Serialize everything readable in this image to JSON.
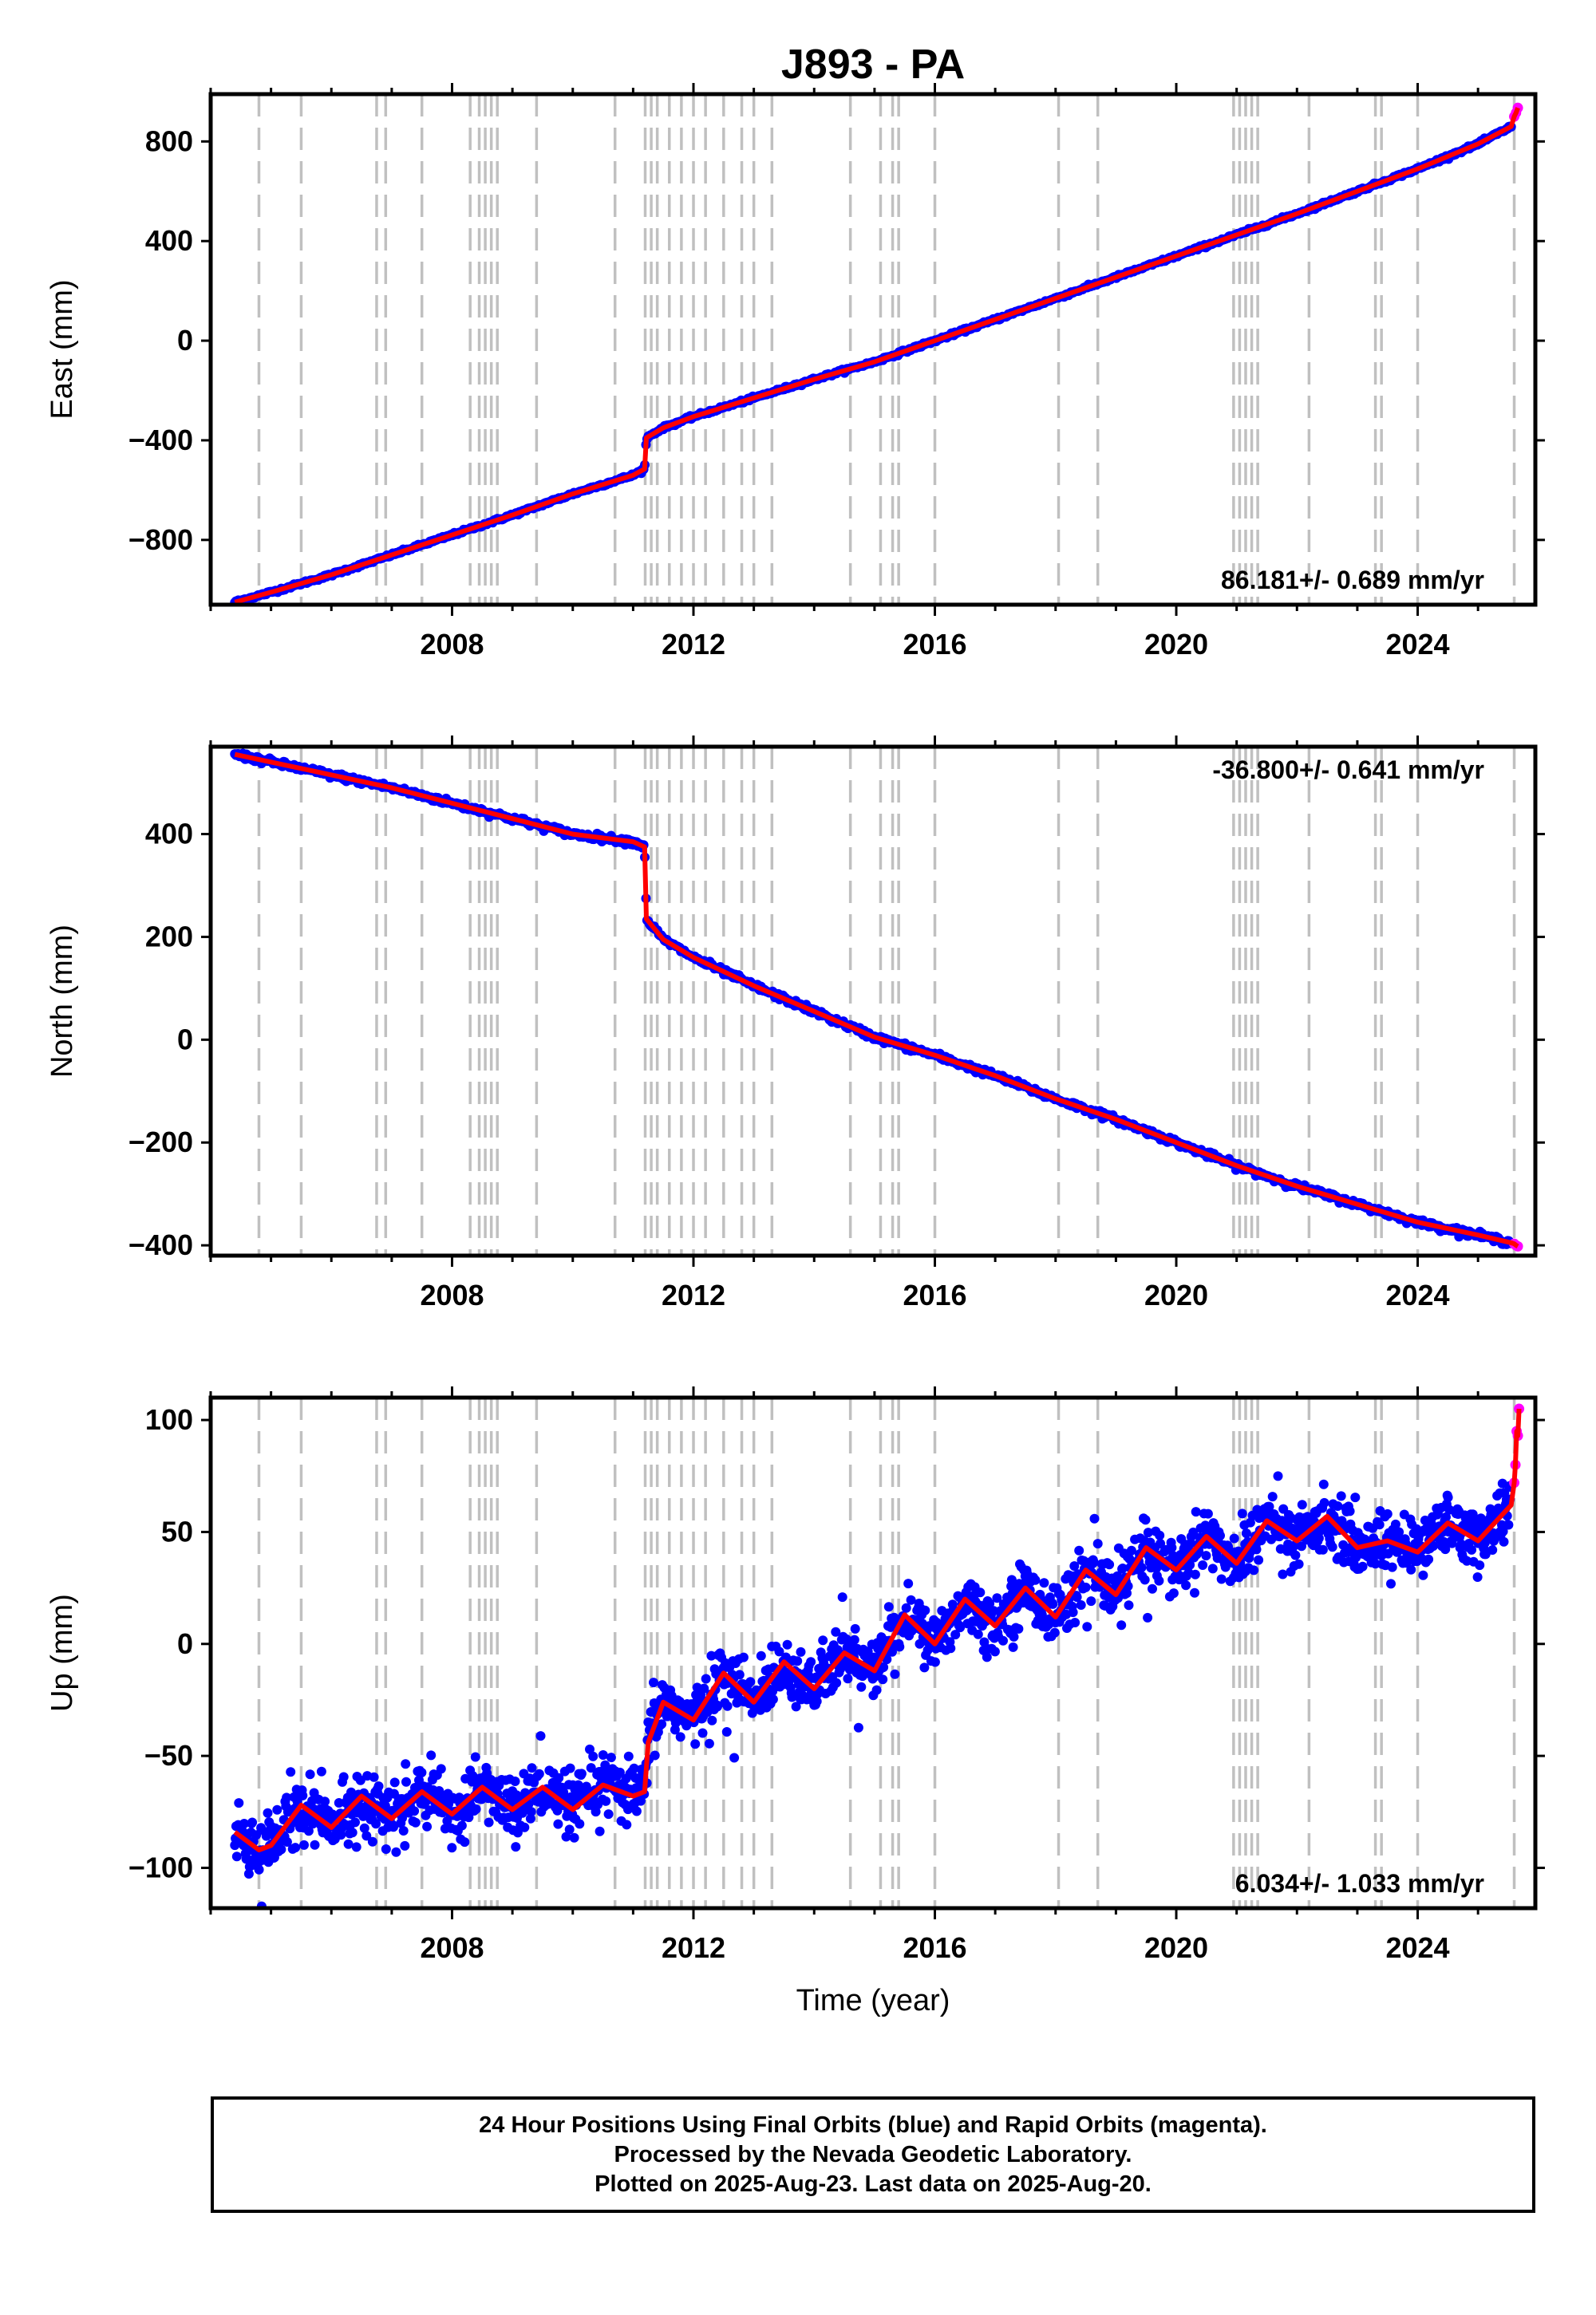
{
  "title": "J893 - PA",
  "xlabel": "Time (year)",
  "footer": {
    "line1": "24 Hour Positions Using Final Orbits (blue) and Rapid Orbits (magenta).",
    "line2": "Processed by the Nevada Geodetic Laboratory.",
    "line3": "Plotted on 2025-Aug-23. Last data on 2025-Aug-20."
  },
  "colors": {
    "final_orbits": "#0000ff",
    "rapid_orbits": "#ff00ff",
    "model": "#ff0000",
    "event_lines": "#c0c0c0"
  },
  "chart_data": [
    {
      "type": "scatter",
      "component": "east",
      "ylabel": "East (mm)",
      "xlim": [
        2004.0,
        2025.95
      ],
      "ylim": [
        -1060,
        990
      ],
      "yticks": [
        -800,
        -400,
        0,
        400,
        800
      ],
      "xticks": [
        2008,
        2012,
        2016,
        2020,
        2024
      ],
      "rate_label": "86.181+/- 0.689 mm/yr",
      "rate_position": "bottom-right",
      "series": [
        {
          "name": "Final Orbits",
          "color": "#0000ff",
          "x": [
            2004.4,
            2005.0,
            2006.0,
            2007.0,
            2008.0,
            2009.0,
            2010.0,
            2011.0,
            2011.19,
            2011.22,
            2011.5,
            2012.0,
            2013.0,
            2014.0,
            2015.0,
            2016.0,
            2017.0,
            2018.0,
            2019.0,
            2020.0,
            2021.0,
            2022.0,
            2023.0,
            2024.0,
            2025.0,
            2025.55
          ],
          "y": [
            -1050,
            -1010,
            -940,
            -860,
            -780,
            -700,
            -615,
            -540,
            -515,
            -390,
            -350,
            -305,
            -230,
            -155,
            -85,
            0,
            85,
            170,
            255,
            340,
            425,
            510,
            600,
            690,
            790,
            860
          ]
        },
        {
          "name": "Rapid Orbits",
          "color": "#ff00ff",
          "x": [
            2025.6,
            2025.63,
            2025.66
          ],
          "y": [
            900,
            915,
            935
          ]
        }
      ],
      "events": [
        2004.8,
        2005.5,
        2006.75,
        2006.9,
        2007.5,
        2008.3,
        2008.45,
        2008.55,
        2008.65,
        2008.75,
        2009.4,
        2010.7,
        2011.2,
        2011.3,
        2011.4,
        2011.6,
        2011.8,
        2012.0,
        2012.2,
        2012.5,
        2012.8,
        2013.0,
        2013.3,
        2014.6,
        2015.1,
        2015.3,
        2015.4,
        2016.0,
        2018.05,
        2018.7,
        2020.95,
        2021.05,
        2021.15,
        2021.25,
        2021.35,
        2022.2,
        2023.3,
        2023.4,
        2024.0,
        2025.6
      ]
    },
    {
      "type": "scatter",
      "component": "north",
      "ylabel": "North (mm)",
      "xlim": [
        2004.0,
        2025.95
      ],
      "ylim": [
        -420,
        570
      ],
      "yticks": [
        -400,
        -200,
        0,
        200,
        400
      ],
      "xticks": [
        2008,
        2012,
        2016,
        2020,
        2024
      ],
      "rate_label": "-36.800+/- 0.641 mm/yr",
      "rate_position": "top-right",
      "series": [
        {
          "name": "Final Orbits",
          "color": "#0000ff",
          "x": [
            2004.4,
            2005.0,
            2006.0,
            2007.0,
            2008.0,
            2009.0,
            2010.0,
            2011.0,
            2011.19,
            2011.22,
            2011.5,
            2012.0,
            2013.0,
            2014.0,
            2015.0,
            2016.0,
            2017.0,
            2018.0,
            2019.0,
            2020.0,
            2021.0,
            2022.0,
            2023.0,
            2024.0,
            2025.0,
            2025.55
          ],
          "y": [
            555,
            540,
            515,
            490,
            460,
            430,
            400,
            385,
            375,
            235,
            195,
            160,
            105,
            55,
            5,
            -30,
            -70,
            -115,
            -155,
            -200,
            -245,
            -285,
            -320,
            -355,
            -380,
            -395
          ]
        },
        {
          "name": "Rapid Orbits",
          "color": "#ff00ff",
          "x": [
            2025.6,
            2025.63,
            2025.66
          ],
          "y": [
            -397,
            -400,
            -402
          ]
        }
      ],
      "events": [
        2004.8,
        2005.5,
        2006.75,
        2006.9,
        2007.5,
        2008.3,
        2008.45,
        2008.55,
        2008.65,
        2008.75,
        2009.4,
        2010.7,
        2011.2,
        2011.3,
        2011.4,
        2011.6,
        2011.8,
        2012.0,
        2012.2,
        2012.5,
        2012.8,
        2013.0,
        2013.3,
        2014.6,
        2015.1,
        2015.3,
        2015.4,
        2016.0,
        2018.05,
        2018.7,
        2020.95,
        2021.05,
        2021.15,
        2021.25,
        2021.35,
        2022.2,
        2023.3,
        2023.4,
        2024.0,
        2025.6
      ]
    },
    {
      "type": "scatter",
      "component": "up",
      "ylabel": "Up (mm)",
      "xlim": [
        2004.0,
        2025.95
      ],
      "ylim": [
        -118,
        110
      ],
      "yticks": [
        -100,
        -50,
        0,
        50,
        100
      ],
      "xticks": [
        2008,
        2012,
        2016,
        2020,
        2024
      ],
      "rate_label": "6.034+/- 1.033 mm/yr",
      "rate_position": "bottom-right",
      "series": [
        {
          "name": "Final Orbits",
          "color": "#0000ff",
          "x": [
            2004.4,
            2004.8,
            2005.0,
            2005.5,
            2006.0,
            2006.5,
            2007.0,
            2007.5,
            2008.0,
            2008.5,
            2009.0,
            2009.5,
            2010.0,
            2010.5,
            2011.0,
            2011.19,
            2011.25,
            2011.5,
            2012.0,
            2012.5,
            2013.0,
            2013.5,
            2014.0,
            2014.5,
            2015.0,
            2015.5,
            2016.0,
            2016.5,
            2017.0,
            2017.5,
            2018.0,
            2018.5,
            2019.0,
            2019.5,
            2020.0,
            2020.5,
            2021.0,
            2021.5,
            2022.0,
            2022.5,
            2023.0,
            2023.5,
            2024.0,
            2024.5,
            2025.0,
            2025.55
          ],
          "y": [
            -84,
            -92,
            -90,
            -72,
            -82,
            -68,
            -78,
            -66,
            -76,
            -64,
            -74,
            -64,
            -74,
            -63,
            -68,
            -66,
            -44,
            -26,
            -34,
            -13,
            -26,
            -8,
            -20,
            -4,
            -12,
            13,
            0,
            20,
            8,
            25,
            12,
            33,
            22,
            43,
            33,
            48,
            36,
            55,
            46,
            57,
            43,
            46,
            41,
            54,
            46,
            62
          ]
        },
        {
          "name": "Rapid Orbits",
          "color": "#ff00ff",
          "x": [
            2025.6,
            2025.62,
            2025.64,
            2025.66,
            2025.68
          ],
          "y": [
            72,
            80,
            95,
            93,
            105
          ]
        }
      ],
      "events": [
        2004.8,
        2005.5,
        2006.75,
        2006.9,
        2007.5,
        2008.3,
        2008.45,
        2008.55,
        2008.65,
        2008.75,
        2009.4,
        2010.7,
        2011.2,
        2011.3,
        2011.4,
        2011.6,
        2011.8,
        2012.0,
        2012.2,
        2012.5,
        2012.8,
        2013.0,
        2013.3,
        2014.6,
        2015.1,
        2015.3,
        2015.4,
        2016.0,
        2018.05,
        2018.7,
        2020.95,
        2021.05,
        2021.15,
        2021.25,
        2021.35,
        2022.2,
        2023.3,
        2023.4,
        2024.0,
        2025.6
      ]
    }
  ]
}
